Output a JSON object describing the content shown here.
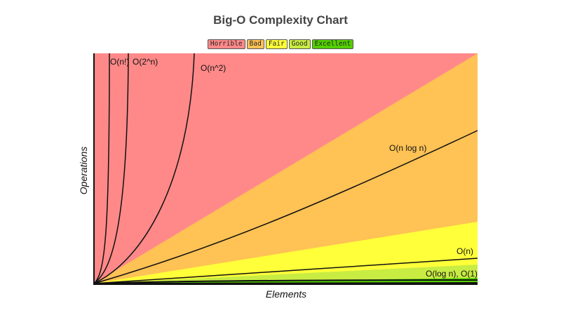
{
  "chart_data": {
    "type": "line",
    "title": "Big-O Complexity Chart",
    "xlabel": "Elements",
    "ylabel": "Operations",
    "legend": [
      {
        "label": "Horrible",
        "color": "#ff8989"
      },
      {
        "label": "Bad",
        "color": "#fec255"
      },
      {
        "label": "Fair",
        "color": "#ffff3a"
      },
      {
        "label": "Good",
        "color": "#c9ec43"
      },
      {
        "label": "Excellent",
        "color": "#53d000"
      }
    ],
    "legend_placement": "top-center",
    "grid": false,
    "series": [
      {
        "name": "O(n!)"
      },
      {
        "name": "O(2^n)"
      },
      {
        "name": "O(n^2)"
      },
      {
        "name": "O(n log n)"
      },
      {
        "name": "O(n)"
      },
      {
        "name": "O(log n), O(1)"
      }
    ]
  }
}
